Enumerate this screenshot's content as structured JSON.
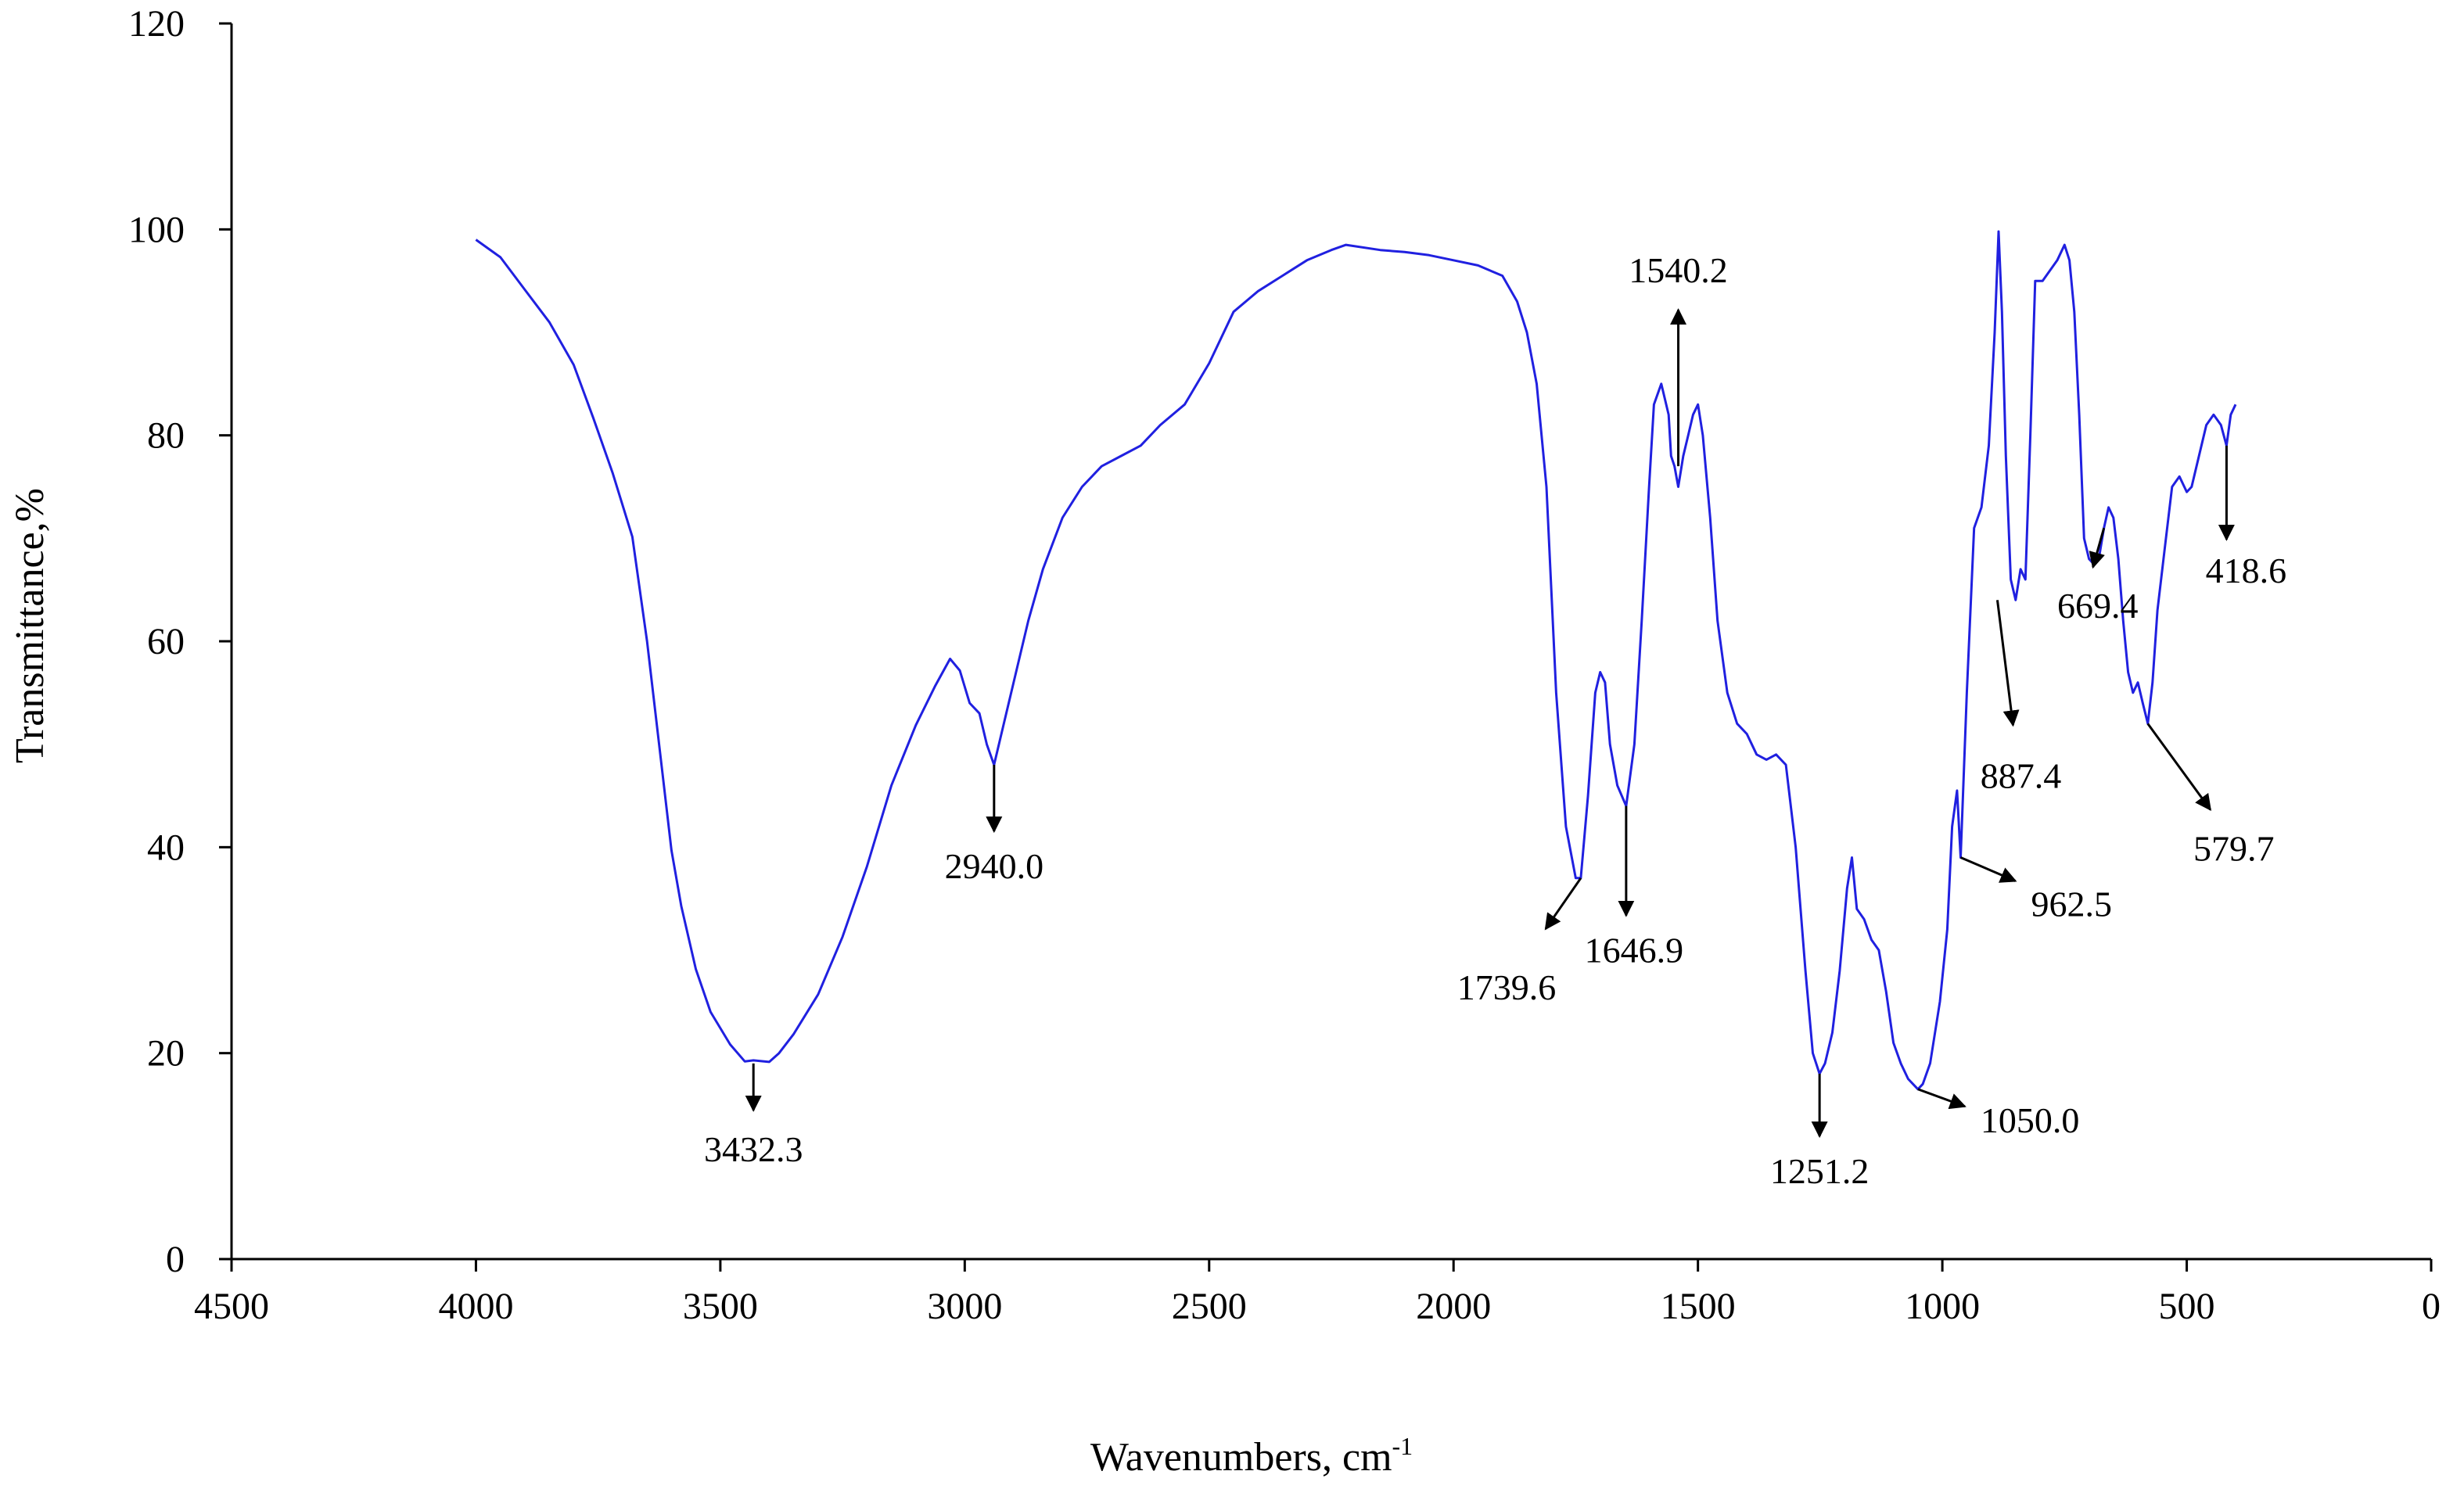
{
  "chart_data": {
    "type": "line",
    "title": "",
    "xlabel": "Wavenumbers, cm",
    "xlabel_superscript": "-1",
    "ylabel": "Transmittance,%",
    "xlim": [
      4500,
      0
    ],
    "ylim": [
      0,
      120
    ],
    "x_reversed": true,
    "x_ticks": [
      4500,
      4000,
      3500,
      3000,
      2500,
      2000,
      1500,
      1000,
      500,
      0
    ],
    "y_ticks": [
      0,
      20,
      40,
      60,
      80,
      100,
      120
    ],
    "grid": false,
    "legend": "none",
    "series": [
      {
        "color": "#2020e0",
        "points": [
          [
            4000,
            99
          ],
          [
            3950,
            97
          ],
          [
            3900,
            94
          ],
          [
            3850,
            91
          ],
          [
            3800,
            87
          ],
          [
            3760,
            82
          ],
          [
            3720,
            76
          ],
          [
            3680,
            70
          ],
          [
            3650,
            60
          ],
          [
            3620,
            48
          ],
          [
            3600,
            40
          ],
          [
            3580,
            34
          ],
          [
            3550,
            28
          ],
          [
            3520,
            24
          ],
          [
            3480,
            21
          ],
          [
            3450,
            19.5
          ],
          [
            3432.3,
            19
          ],
          [
            3400,
            19
          ],
          [
            3380,
            20
          ],
          [
            3350,
            22
          ],
          [
            3300,
            26
          ],
          [
            3250,
            31
          ],
          [
            3200,
            38
          ],
          [
            3150,
            46
          ],
          [
            3100,
            52
          ],
          [
            3060,
            56
          ],
          [
            3030,
            58
          ],
          [
            3010,
            57
          ],
          [
            2990,
            54
          ],
          [
            2970,
            53
          ],
          [
            2955,
            50
          ],
          [
            2940,
            48
          ],
          [
            2920,
            52
          ],
          [
            2900,
            56
          ],
          [
            2870,
            62
          ],
          [
            2840,
            67
          ],
          [
            2800,
            72
          ],
          [
            2760,
            75
          ],
          [
            2720,
            77
          ],
          [
            2680,
            78
          ],
          [
            2640,
            79
          ],
          [
            2600,
            81
          ],
          [
            2550,
            83
          ],
          [
            2500,
            87
          ],
          [
            2450,
            92
          ],
          [
            2400,
            94
          ],
          [
            2350,
            95.5
          ],
          [
            2300,
            97
          ],
          [
            2250,
            98
          ],
          [
            2220,
            98.5
          ],
          [
            2150,
            98
          ],
          [
            2100,
            97.8
          ],
          [
            2050,
            97.5
          ],
          [
            2000,
            97
          ],
          [
            1950,
            96.5
          ],
          [
            1900,
            95.5
          ],
          [
            1870,
            93
          ],
          [
            1850,
            90
          ],
          [
            1830,
            85
          ],
          [
            1810,
            75
          ],
          [
            1790,
            55
          ],
          [
            1770,
            42
          ],
          [
            1750,
            37
          ],
          [
            1739.6,
            37
          ],
          [
            1725,
            45
          ],
          [
            1710,
            55
          ],
          [
            1700,
            57
          ],
          [
            1690,
            56
          ],
          [
            1680,
            50
          ],
          [
            1665,
            46
          ],
          [
            1646.9,
            44
          ],
          [
            1630,
            50
          ],
          [
            1615,
            62
          ],
          [
            1600,
            75
          ],
          [
            1590,
            83
          ],
          [
            1575,
            85
          ],
          [
            1560,
            82
          ],
          [
            1555,
            78
          ],
          [
            1548,
            77
          ],
          [
            1540.2,
            75
          ],
          [
            1530,
            78
          ],
          [
            1520,
            80
          ],
          [
            1510,
            82
          ],
          [
            1500,
            83
          ],
          [
            1490,
            80
          ],
          [
            1475,
            72
          ],
          [
            1460,
            62
          ],
          [
            1440,
            55
          ],
          [
            1420,
            52
          ],
          [
            1400,
            51
          ],
          [
            1380,
            49
          ],
          [
            1360,
            48.5
          ],
          [
            1340,
            49
          ],
          [
            1320,
            48
          ],
          [
            1300,
            40
          ],
          [
            1280,
            28
          ],
          [
            1265,
            20
          ],
          [
            1251.2,
            18
          ],
          [
            1240,
            19
          ],
          [
            1225,
            22
          ],
          [
            1210,
            28
          ],
          [
            1195,
            36
          ],
          [
            1185,
            39
          ],
          [
            1175,
            34
          ],
          [
            1160,
            33
          ],
          [
            1145,
            31
          ],
          [
            1130,
            30
          ],
          [
            1115,
            26
          ],
          [
            1100,
            21
          ],
          [
            1085,
            19
          ],
          [
            1070,
            17.5
          ],
          [
            1060,
            17
          ],
          [
            1050.0,
            16.5
          ],
          [
            1040,
            17
          ],
          [
            1025,
            19
          ],
          [
            1005,
            25
          ],
          [
            990,
            32
          ],
          [
            980,
            42
          ],
          [
            970,
            45.5
          ],
          [
            962.5,
            39
          ],
          [
            950,
            55
          ],
          [
            935,
            71
          ],
          [
            920,
            73
          ],
          [
            905,
            79
          ],
          [
            893,
            90
          ],
          [
            885,
            99.8
          ],
          [
            878,
            92
          ],
          [
            870,
            78
          ],
          [
            860,
            66
          ],
          [
            850,
            64
          ],
          [
            840,
            67
          ],
          [
            830,
            66
          ],
          [
            820,
            80
          ],
          [
            810,
            95
          ],
          [
            795,
            95
          ],
          [
            780,
            96
          ],
          [
            765,
            97
          ],
          [
            750,
            98.5
          ],
          [
            740,
            97
          ],
          [
            730,
            92
          ],
          [
            720,
            82
          ],
          [
            710,
            70
          ],
          [
            700,
            68
          ],
          [
            690,
            67.5
          ],
          [
            680,
            68
          ],
          [
            669.4,
            71
          ],
          [
            660,
            73
          ],
          [
            650,
            72
          ],
          [
            640,
            68
          ],
          [
            630,
            62
          ],
          [
            620,
            57
          ],
          [
            610,
            55
          ],
          [
            600,
            56
          ],
          [
            590,
            54
          ],
          [
            579.7,
            52
          ],
          [
            570,
            56
          ],
          [
            560,
            63
          ],
          [
            545,
            69
          ],
          [
            530,
            75
          ],
          [
            515,
            76
          ],
          [
            500,
            74.5
          ],
          [
            490,
            75
          ],
          [
            475,
            78
          ],
          [
            460,
            81
          ],
          [
            445,
            82
          ],
          [
            430,
            81
          ],
          [
            418.6,
            79
          ],
          [
            410,
            82
          ],
          [
            400,
            83
          ]
        ]
      }
    ],
    "annotations": [
      {
        "text": "3432.3",
        "x": 3432.3,
        "y": 19,
        "direction": "down"
      },
      {
        "text": "2940.0",
        "x": 2940.0,
        "y": 48,
        "direction": "down"
      },
      {
        "text": "1739.6",
        "x": 1739.6,
        "y": 37,
        "direction": "down-left"
      },
      {
        "text": "1646.9",
        "x": 1646.9,
        "y": 44,
        "direction": "down"
      },
      {
        "text": "1540.2",
        "x": 1540.2,
        "y": 77,
        "direction": "up"
      },
      {
        "text": "1251.2",
        "x": 1251.2,
        "y": 18,
        "direction": "down"
      },
      {
        "text": "1050.0",
        "x": 1050.0,
        "y": 16.5,
        "direction": "down-right"
      },
      {
        "text": "962.5",
        "x": 962.5,
        "y": 39,
        "direction": "down-right"
      },
      {
        "text": "887.4",
        "x": 887.4,
        "y": 64,
        "direction": "down"
      },
      {
        "text": "669.4",
        "x": 669.4,
        "y": 71,
        "direction": "down-left"
      },
      {
        "text": "579.7",
        "x": 579.7,
        "y": 52,
        "direction": "down-right"
      },
      {
        "text": "418.6",
        "x": 418.6,
        "y": 79,
        "direction": "down"
      }
    ]
  }
}
